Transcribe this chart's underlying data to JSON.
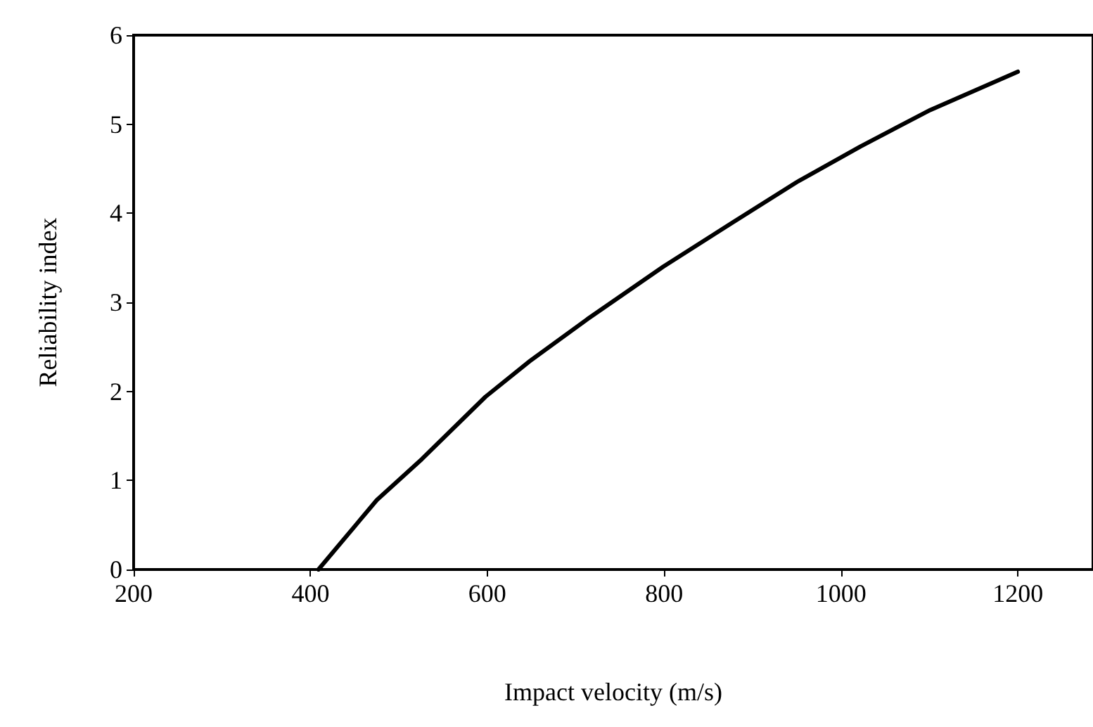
{
  "chart_data": {
    "type": "line",
    "xlabel": "Impact velocity (m/s)",
    "ylabel": "Reliability index",
    "x": [
      409,
      475,
      526,
      598,
      648,
      713,
      799,
      878,
      950,
      1022,
      1101,
      1200
    ],
    "series": [
      {
        "color": "#000000",
        "values": [
          0,
          0.78,
          1.24,
          1.94,
          2.34,
          2.81,
          3.4,
          3.9,
          4.35,
          4.75,
          5.16,
          5.59
        ]
      }
    ],
    "xlim": [
      200,
      1285
    ],
    "xticks": [
      200,
      400,
      600,
      800,
      1000,
      1200
    ],
    "ylim": [
      0,
      6
    ],
    "yticks": [
      0,
      1,
      2,
      3,
      4,
      5,
      6
    ],
    "grid": false,
    "marker": "none",
    "line_style": "solid"
  }
}
